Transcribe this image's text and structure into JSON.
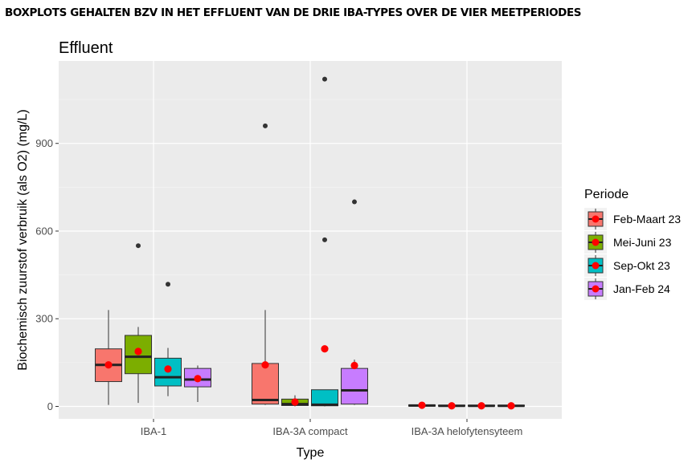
{
  "heading": "BOXPLOTS GEHALTEN BZV IN HET EFFLUENT VAN DE DRIE IBA-TYPES OVER DE VIER MEETPERIODES",
  "chart_data": {
    "type": "boxplot",
    "title": "Effluent",
    "xlabel": "Type",
    "ylabel": "Biochemisch zuurstof verbruik (als O2) (mg/L)",
    "ylim": [
      -40,
      1155
    ],
    "yticks": [
      0,
      300,
      600,
      900
    ],
    "grid": true,
    "legend_title": "Periode",
    "legend_position": "right",
    "categories": [
      "IBA-1",
      "IBA-3A compact",
      "IBA-3A helofytensyteem"
    ],
    "series": [
      {
        "name": "Feb-Maart 23",
        "color": "#F8766D",
        "boxes": [
          {
            "whisker_low": 5,
            "q1": 85,
            "median": 142,
            "q3": 197,
            "whisker_high": 330,
            "mean": 142,
            "outliers": []
          },
          {
            "whisker_low": 5,
            "q1": 8,
            "median": 22,
            "q3": 147,
            "whisker_high": 330,
            "mean": 142,
            "outliers": [
              960
            ]
          },
          {
            "whisker_low": 0,
            "q1": 1,
            "median": 3,
            "q3": 5,
            "whisker_high": 12,
            "mean": 4,
            "outliers": []
          }
        ]
      },
      {
        "name": "Mei-Juni 23",
        "color": "#7CAE00",
        "boxes": [
          {
            "whisker_low": 12,
            "q1": 112,
            "median": 170,
            "q3": 243,
            "whisker_high": 272,
            "mean": 188,
            "outliers": [
              550
            ]
          },
          {
            "whisker_low": 0,
            "q1": 3,
            "median": 8,
            "q3": 25,
            "whisker_high": 38,
            "mean": 15,
            "outliers": []
          },
          {
            "whisker_low": 0,
            "q1": 1,
            "median": 2,
            "q3": 4,
            "whisker_high": 6,
            "mean": 2,
            "outliers": []
          }
        ]
      },
      {
        "name": "Sep-Okt 23",
        "color": "#00BFC4",
        "boxes": [
          {
            "whisker_low": 35,
            "q1": 70,
            "median": 100,
            "q3": 165,
            "whisker_high": 200,
            "mean": 128,
            "outliers": [
              418
            ]
          },
          {
            "whisker_low": 0,
            "q1": 2,
            "median": 6,
            "q3": 57,
            "whisker_high": 57,
            "mean": 197,
            "outliers": [
              1120,
              570
            ]
          },
          {
            "whisker_low": 0,
            "q1": 1,
            "median": 2,
            "q3": 4,
            "whisker_high": 6,
            "mean": 2,
            "outliers": []
          }
        ]
      },
      {
        "name": "Jan-Feb 24",
        "color": "#C77CFF",
        "boxes": [
          {
            "whisker_low": 15,
            "q1": 67,
            "median": 92,
            "q3": 130,
            "whisker_high": 140,
            "mean": 95,
            "outliers": []
          },
          {
            "whisker_low": 5,
            "q1": 8,
            "median": 55,
            "q3": 130,
            "whisker_high": 160,
            "mean": 140,
            "outliers": [
              700
            ]
          },
          {
            "whisker_low": 0,
            "q1": 1,
            "median": 2,
            "q3": 4,
            "whisker_high": 6,
            "mean": 2,
            "outliers": []
          }
        ]
      }
    ]
  }
}
